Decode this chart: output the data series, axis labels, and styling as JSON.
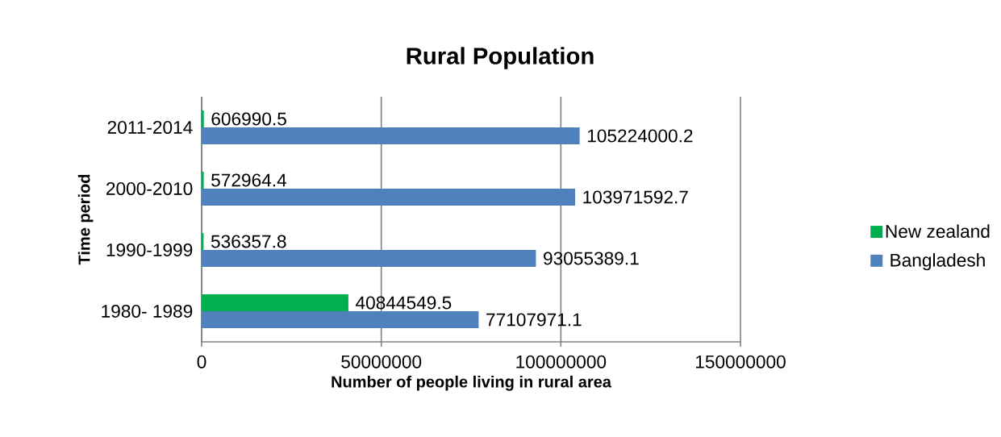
{
  "chart_data": {
    "type": "bar",
    "orientation": "horizontal",
    "title": "Rural Population",
    "xlabel": "Number of people living in rural area",
    "ylabel": "Time period",
    "categories": [
      "2011-2014",
      "2000-2010",
      "1990-1999",
      "1980- 1989"
    ],
    "series": [
      {
        "name": "Bangladesh",
        "color": "#4f81bd",
        "values": [
          105224000.2,
          103971592.7,
          93055389.1,
          77107971.1
        ]
      },
      {
        "name": "New zealand",
        "color": "#00b050",
        "values": [
          606990.5,
          572964.4,
          536357.8,
          40844549.5
        ]
      }
    ],
    "xlim": [
      0,
      150000000
    ],
    "xticks": [
      0,
      50000000,
      100000000,
      150000000
    ],
    "grid": "x",
    "legend": "right",
    "data_labels": true
  }
}
